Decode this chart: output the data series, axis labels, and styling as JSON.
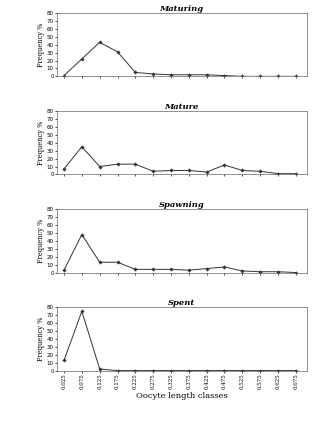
{
  "x_labels": [
    "0.025",
    "0.075",
    "0.125",
    "0.175",
    "0.225",
    "0.275",
    "0.325",
    "0.375",
    "0.425",
    "0.475",
    "0.525",
    "0.575",
    "0.625",
    "0.675"
  ],
  "x_values": [
    0.025,
    0.075,
    0.125,
    0.175,
    0.225,
    0.275,
    0.325,
    0.375,
    0.425,
    0.475,
    0.525,
    0.575,
    0.625,
    0.675
  ],
  "panels": [
    {
      "title": "Maturing",
      "y_values": [
        1,
        22,
        43,
        31,
        5,
        3,
        2,
        2,
        2,
        1,
        0,
        0,
        0,
        0
      ],
      "ylim": [
        0,
        80
      ],
      "yticks": [
        0,
        10,
        20,
        30,
        40,
        50,
        60,
        70,
        80
      ]
    },
    {
      "title": "Mature",
      "y_values": [
        7,
        35,
        10,
        13,
        13,
        4,
        5,
        5,
        3,
        12,
        5,
        4,
        1,
        1
      ],
      "ylim": [
        0,
        80
      ],
      "yticks": [
        0,
        10,
        20,
        30,
        40,
        50,
        60,
        70,
        80
      ]
    },
    {
      "title": "Spawning",
      "y_values": [
        3,
        48,
        13,
        13,
        4,
        4,
        4,
        3,
        5,
        7,
        2,
        1,
        1,
        0
      ],
      "ylim": [
        0,
        80
      ],
      "yticks": [
        0,
        10,
        20,
        30,
        40,
        50,
        60,
        70,
        80
      ]
    },
    {
      "title": "Spent",
      "y_values": [
        13,
        75,
        2,
        0,
        0,
        0,
        0,
        0,
        0,
        0,
        0,
        0,
        0,
        0
      ],
      "ylim": [
        0,
        80
      ],
      "yticks": [
        0,
        10,
        20,
        30,
        40,
        50,
        60,
        70,
        80
      ]
    }
  ],
  "ylabel": "Frequency %",
  "xlabel": "Oocyte length classes",
  "line_color": "#333333",
  "marker": "D",
  "marker_size": 1.8,
  "line_width": 0.7,
  "background_color": "#ffffff",
  "title_fontsize": 6.0,
  "tick_fontsize": 4.0,
  "ylabel_fontsize": 4.8,
  "xlabel_fontsize": 6.0
}
